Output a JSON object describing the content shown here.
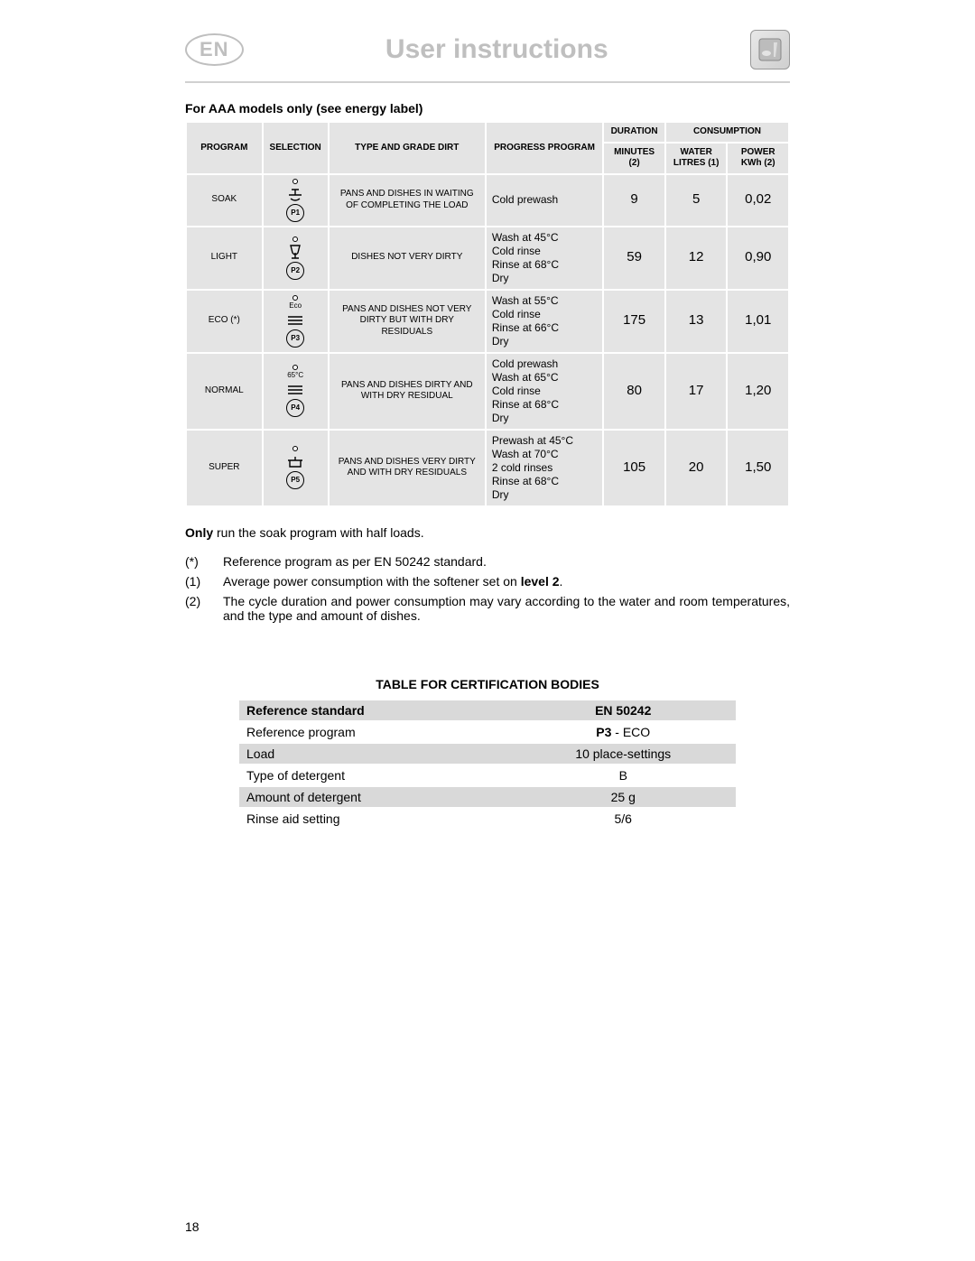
{
  "header": {
    "lang": "EN",
    "title": "User instructions"
  },
  "section_caption": "For AAA models only (see energy label)",
  "programs_table": {
    "columns": {
      "program": "PROGRAM",
      "selection": "SELECTION",
      "type": "TYPE AND GRADE DIRT",
      "progress": "PROGRESS PROGRAM",
      "duration_group": "DURATION",
      "consumption_group": "CONSUMPTION",
      "minutes": "MINUTES (2)",
      "water": "WATER LITRES (1)",
      "power": "POWER KWh (2)"
    },
    "rows": [
      {
        "program": "SOAK",
        "sel_code": "P1",
        "sel_label": "",
        "sel_icon": "tap",
        "type": "PANS AND DISHES IN WAITING OF COMPLETING THE LOAD",
        "progress": "Cold prewash",
        "minutes": "9",
        "water": "5",
        "power": "0,02"
      },
      {
        "program": "LIGHT",
        "sel_code": "P2",
        "sel_label": "",
        "sel_icon": "glass",
        "type": "DISHES NOT VERY DIRTY",
        "progress": "Wash at 45°C\nCold rinse\nRinse at 68°C\nDry",
        "minutes": "59",
        "water": "12",
        "power": "0,90"
      },
      {
        "program": "ECO (*)",
        "sel_code": "P3",
        "sel_label": "Eco",
        "sel_icon": "plates",
        "type": "PANS AND DISHES NOT VERY DIRTY BUT WITH DRY RESIDUALS",
        "progress": "Wash at 55°C\nCold rinse\nRinse at 66°C\nDry",
        "minutes": "175",
        "water": "13",
        "power": "1,01"
      },
      {
        "program": "NORMAL",
        "sel_code": "P4",
        "sel_label": "65°C",
        "sel_icon": "plates",
        "type": "PANS AND DISHES DIRTY AND WITH DRY RESIDUAL",
        "progress": "Cold prewash\nWash at 65°C\nCold rinse\nRinse at 68°C\nDry",
        "minutes": "80",
        "water": "17",
        "power": "1,20"
      },
      {
        "program": "SUPER",
        "sel_code": "P5",
        "sel_label": "",
        "sel_icon": "pot",
        "type": "PANS AND DISHES VERY DIRTY AND WITH DRY RESIDUALS",
        "progress": "Prewash at 45°C\nWash at 70°C\n2 cold rinses\nRinse at 68°C\nDry",
        "minutes": "105",
        "water": "20",
        "power": "1,50"
      }
    ]
  },
  "notes": {
    "only_bold": "Only",
    "only_rest": " run the soak program with half loads.",
    "footnotes": [
      {
        "mark": "(*)",
        "text": "Reference program as per EN 50242 standard."
      },
      {
        "mark": "(1)",
        "text_pre": "Average power consumption with the softener set on ",
        "bold": "level 2",
        "text_post": "."
      },
      {
        "mark": "(2)",
        "text": "The cycle duration and power consumption may vary according to the water and room temperatures, and the type and amount of dishes."
      }
    ]
  },
  "cert": {
    "title": "TABLE FOR CERTIFICATION BODIES",
    "rows": [
      {
        "label": "Reference standard",
        "value_bold": "EN 50242",
        "value_rest": "",
        "gray": true,
        "head": true
      },
      {
        "label": "Reference program",
        "value_bold": "P3",
        "value_rest": " - ECO",
        "gray": false
      },
      {
        "label": "Load",
        "value_bold": "",
        "value_rest": "10 place-settings",
        "gray": true
      },
      {
        "label": "Type of detergent",
        "value_bold": "",
        "value_rest": "B",
        "gray": false
      },
      {
        "label": "Amount of detergent",
        "value_bold": "",
        "value_rest": "25 g",
        "gray": true
      },
      {
        "label": "Rinse aid setting",
        "value_bold": "",
        "value_rest": "5/6",
        "gray": false
      }
    ]
  },
  "page_number": "18"
}
